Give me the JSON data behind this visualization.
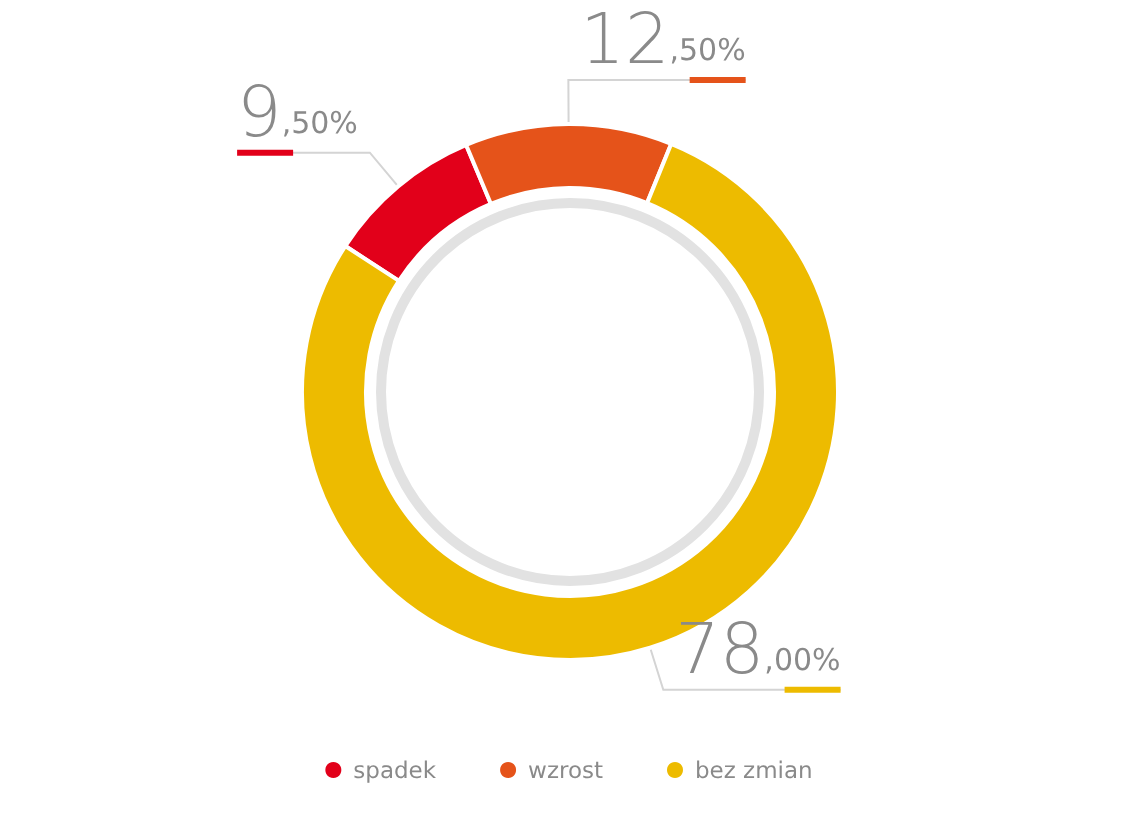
{
  "chart_data": {
    "type": "donut",
    "categories": [
      "spadek",
      "wzrost",
      "bez zmian"
    ],
    "values": [
      9.5,
      12.5,
      78.0
    ],
    "colors": [
      "#e2001a",
      "#e5531a",
      "#edbb00"
    ],
    "value_labels": [
      "9,50%",
      "12,50%",
      "78,00%"
    ],
    "legend": "bottom"
  }
}
